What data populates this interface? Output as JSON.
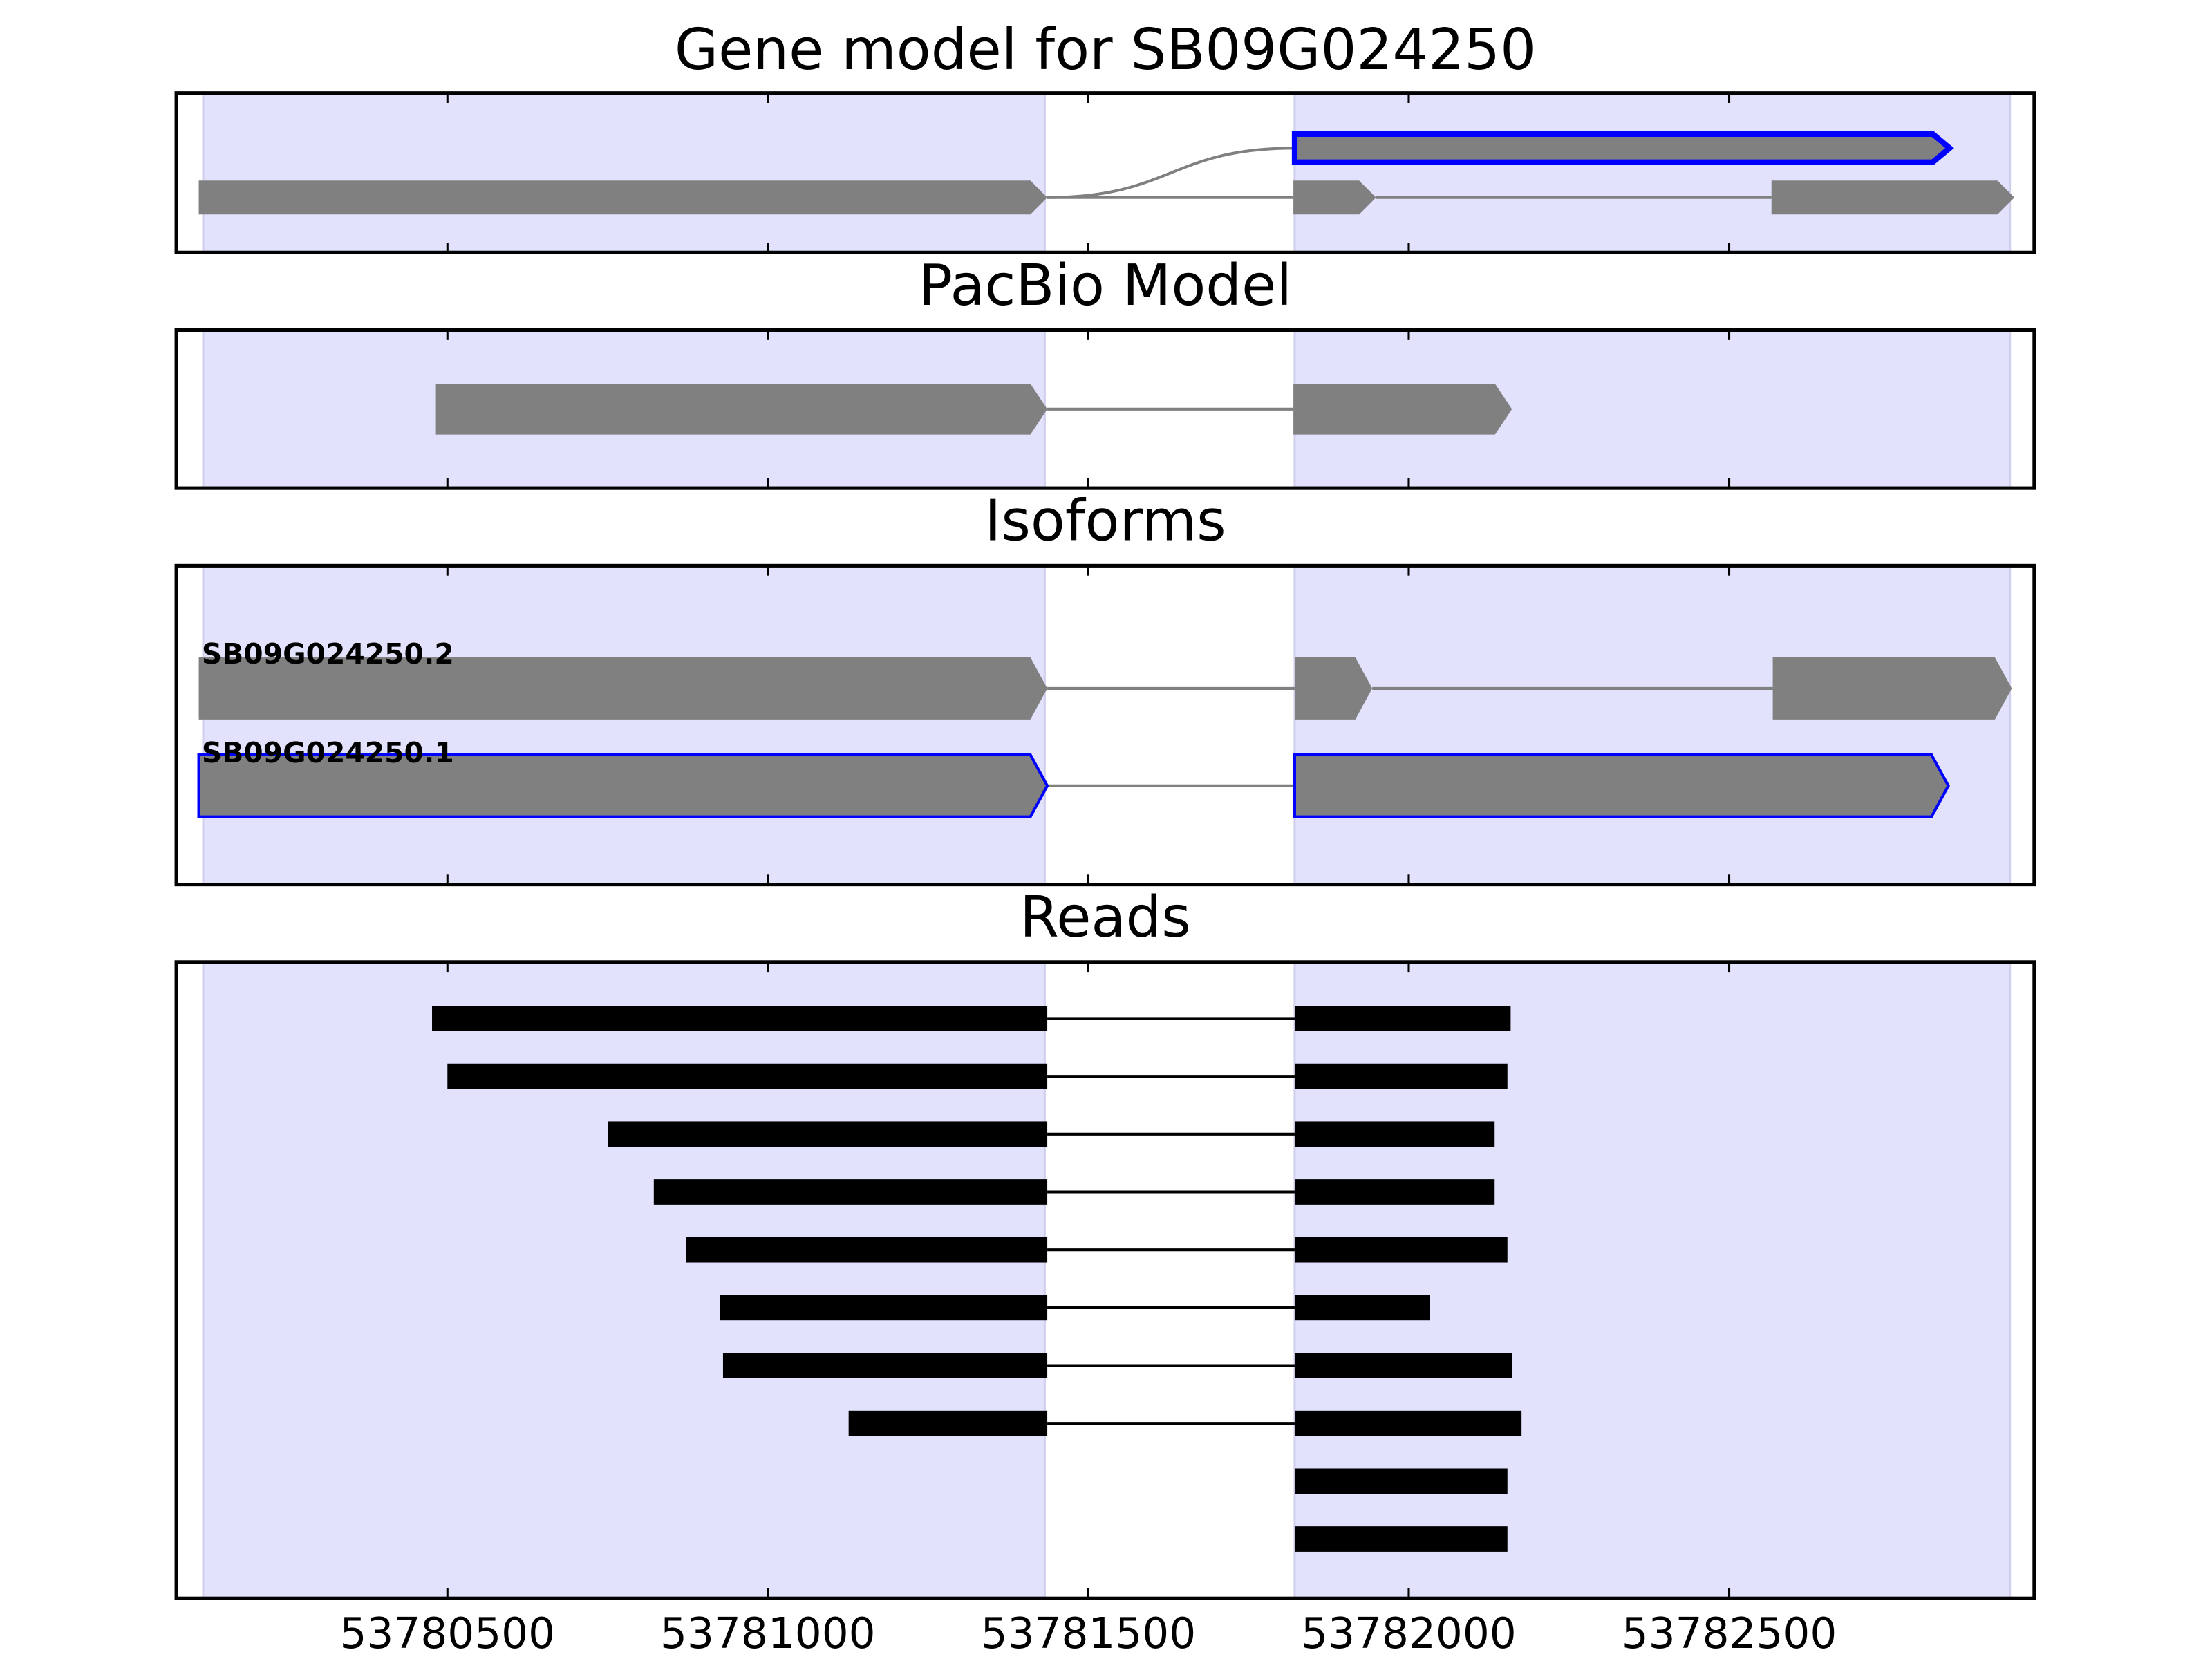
{
  "chart_data": {
    "type": "gene-tracks",
    "xlim": [
      53780077,
      53782976
    ],
    "xticks": [
      53780500,
      53781000,
      53781500,
      53782000,
      53782500
    ],
    "shaded": [
      [
        53780119,
        53781432
      ],
      [
        53781822,
        53782938
      ]
    ],
    "shade_color": "#e2e2fc",
    "panels": [
      {
        "title": "Gene model for SB09G024250",
        "style": "gene",
        "color": "#808080",
        "rows": [
          {
            "blocks": [
              [
                53781822,
                53782844
              ]
            ],
            "outline": "#0000ff"
          },
          {
            "blocks": [
              [
                53780112,
                53781436
              ],
              [
                53781820,
                53781949
              ],
              [
                53782566,
                53782945
              ]
            ]
          }
        ]
      },
      {
        "title": "PacBio Model",
        "style": "gene",
        "color": "#808080",
        "rows": [
          {
            "blocks": [
              [
                53780482,
                53781436
              ],
              [
                53781820,
                53782161
              ]
            ]
          }
        ]
      },
      {
        "title": "Isoforms",
        "style": "gene",
        "color": "#808080",
        "rows": [
          {
            "name": "SB09G024250.2",
            "blocks": [
              [
                53780112,
                53781436
              ],
              [
                53781822,
                53781943
              ],
              [
                53782568,
                53782941
              ]
            ]
          },
          {
            "name": "SB09G024250.1",
            "blocks": [
              [
                53780112,
                53781436
              ],
              [
                53781822,
                53782842
              ]
            ],
            "outline": "#0000ff"
          }
        ]
      },
      {
        "title": "Reads",
        "style": "read",
        "color": "#000000",
        "rows": [
          {
            "blocks": [
              [
                53780476,
                53781436
              ],
              [
                53781822,
                53782159
              ]
            ]
          },
          {
            "blocks": [
              [
                53780500,
                53781436
              ],
              [
                53781822,
                53782154
              ]
            ]
          },
          {
            "blocks": [
              [
                53780751,
                53781436
              ],
              [
                53781822,
                53782134
              ]
            ]
          },
          {
            "blocks": [
              [
                53780822,
                53781436
              ],
              [
                53781822,
                53782134
              ]
            ]
          },
          {
            "blocks": [
              [
                53780872,
                53781436
              ],
              [
                53781822,
                53782154
              ]
            ]
          },
          {
            "blocks": [
              [
                53780925,
                53781436
              ],
              [
                53781822,
                53782033
              ]
            ]
          },
          {
            "blocks": [
              [
                53780930,
                53781436
              ],
              [
                53781822,
                53782161
              ]
            ]
          },
          {
            "blocks": [
              [
                53781126,
                53781436
              ],
              [
                53781822,
                53782176
              ]
            ]
          },
          {
            "blocks": [
              [
                53781822,
                53782154
              ]
            ]
          },
          {
            "blocks": [
              [
                53781822,
                53782154
              ]
            ]
          }
        ]
      }
    ]
  }
}
